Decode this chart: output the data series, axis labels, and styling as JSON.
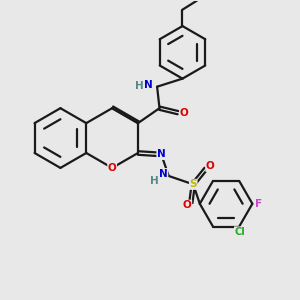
{
  "background_color": "#e8e8e8",
  "line_color": "#1a1a1a",
  "bond_width": 1.6,
  "atom_colors": {
    "N": "#0000cc",
    "O": "#dd0000",
    "S": "#bbbb00",
    "Cl": "#22aa22",
    "F": "#cc44cc",
    "C": "#1a1a1a",
    "H": "#558888"
  },
  "font_size": 7.5
}
